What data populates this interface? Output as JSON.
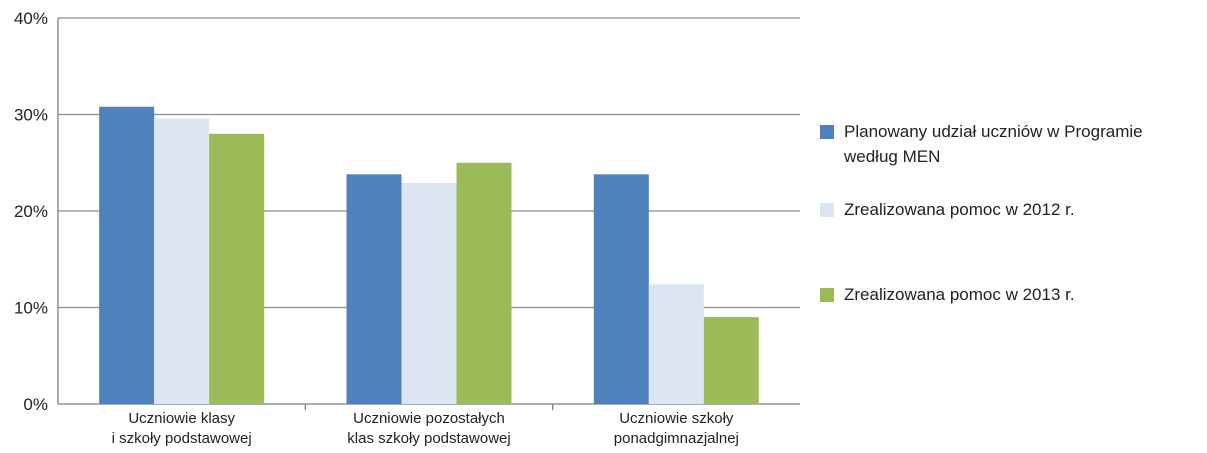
{
  "chart_data": {
    "type": "bar",
    "categories": [
      [
        "Uczniowie klasy",
        "i szkoły podstawowej"
      ],
      [
        "Uczniowie pozostałych",
        "klas szkoły podstawowej"
      ],
      [
        "Uczniowie szkoły",
        "ponadgimnazjalnej"
      ]
    ],
    "series": [
      {
        "name": "Planowany udział uczniów w Programie według MEN",
        "legend_lines": [
          "Planowany udział uczniów w Programie",
          "według MEN"
        ],
        "color": "#4f81bd",
        "values": [
          30.8,
          23.8,
          23.8
        ]
      },
      {
        "name": "Zrealizowana pomoc w 2012 r.",
        "legend_lines": [
          "Zrealizowana pomoc w 2012 r."
        ],
        "color": "#dce6f2",
        "values": [
          29.6,
          22.9,
          12.4
        ]
      },
      {
        "name": "Zrealizowana pomoc w 2013 r.",
        "legend_lines": [
          "Zrealizowana pomoc w 2013 r."
        ],
        "color": "#9bbb59",
        "values": [
          28.0,
          25.0,
          9.0
        ]
      }
    ],
    "y_ticks": [
      0,
      10,
      20,
      30,
      40
    ],
    "y_tick_labels": [
      "0%",
      "10%",
      "20%",
      "30%",
      "40%"
    ],
    "ylim": [
      0,
      40
    ],
    "grid": true,
    "legend_position": "right"
  }
}
